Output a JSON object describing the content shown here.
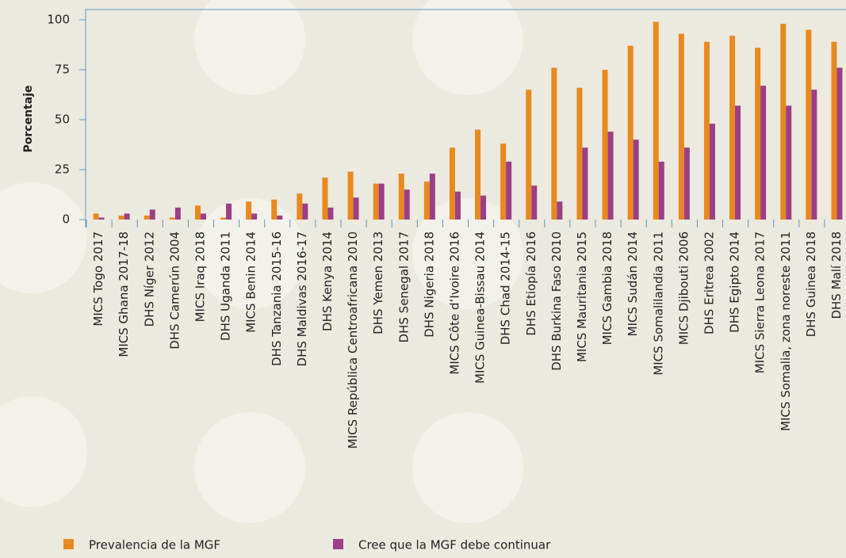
{
  "chart_data": {
    "type": "bar",
    "y_label": "Porcentaje",
    "categories": [
      "MICS Togo 2017",
      "MICS Ghana 2017-18",
      "DHS Níger 2012",
      "DHS Camerún 2004",
      "MICS Iraq 2018",
      "DHS Uganda 2011",
      "MICS Benin 2014",
      "DHS Tanzania 2015-16",
      "DHS Maldivas 2016-17",
      "DHS Kenya 2014",
      "MICS República Centroafricana 2010",
      "DHS Yemen 2013",
      "DHS Senegal 2017",
      "DHS Nigeria 2018",
      "MICS Côte d’Ivoire 2016",
      "MICS Guinea-Bissau 2014",
      "DHS Chad 2014-15",
      "DHS Etiopía 2016",
      "DHS Burkina Faso 2010",
      "MICS Mauritania 2015",
      "MICS Gambia 2018",
      "MICS Sudán 2014",
      "MICS Somalilandia 2011",
      "MICS Djibouti 2006",
      "DHS Eritrea 2002",
      "DHS Egipto 2014",
      "MICS Sierra Leona 2017",
      "MICS Somalia, zona noreste 2011",
      "DHS Guinea 2018",
      "DHS Malí 2018"
    ],
    "series": [
      {
        "name": "Prevalencia de la MGF",
        "color": "#e8891f",
        "values": [
          3,
          2,
          2,
          1,
          7,
          1,
          9,
          10,
          13,
          21,
          24,
          18,
          23,
          19,
          36,
          45,
          38,
          65,
          76,
          66,
          75,
          87,
          99,
          93,
          89,
          92,
          86,
          98,
          95,
          89
        ]
      },
      {
        "name": "Cree que la MGF debe continuar",
        "color": "#9b3f86",
        "values": [
          1,
          3,
          5,
          6,
          3,
          8,
          3,
          2,
          8,
          6,
          11,
          18,
          15,
          23,
          14,
          12,
          29,
          17,
          9,
          36,
          44,
          40,
          29,
          36,
          48,
          57,
          67,
          57,
          65,
          76
        ]
      }
    ],
    "ylim": [
      0,
      100
    ],
    "yticks": [
      0,
      25,
      50,
      75,
      100
    ],
    "grid": false
  }
}
